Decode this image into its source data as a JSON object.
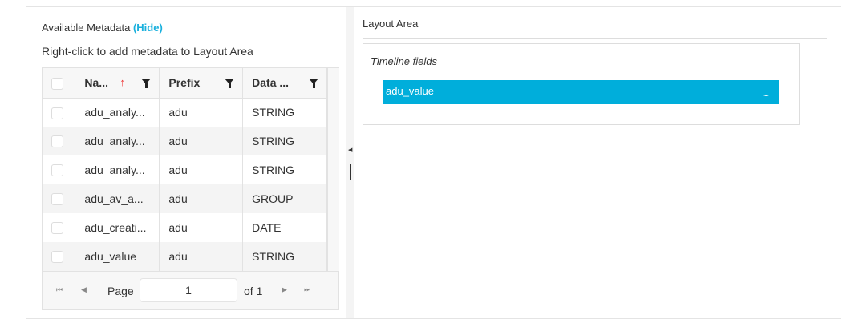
{
  "left": {
    "title": "Available Metadata",
    "hide_label": "(Hide)",
    "hint": "Right-click to add metadata to Layout Area",
    "columns": [
      "Na...",
      "Prefix",
      "Data ..."
    ],
    "rows": [
      {
        "name": "adu_analy...",
        "prefix": "adu",
        "type": "STRING"
      },
      {
        "name": "adu_analy...",
        "prefix": "adu",
        "type": "STRING"
      },
      {
        "name": "adu_analy...",
        "prefix": "adu",
        "type": "STRING"
      },
      {
        "name": "adu_av_a...",
        "prefix": "adu",
        "type": "GROUP"
      },
      {
        "name": "adu_creati...",
        "prefix": "adu",
        "type": "DATE"
      },
      {
        "name": "adu_value",
        "prefix": "adu",
        "type": "STRING"
      }
    ],
    "pager": {
      "page_label": "Page",
      "page": "1",
      "of_label": "of 1"
    }
  },
  "right": {
    "title": "Layout Area",
    "timeline_title": "Timeline fields",
    "fields": [
      {
        "label": "adu_value",
        "menu": "..."
      }
    ]
  },
  "colors": {
    "accent": "#00aedb",
    "sort": "#ee3333"
  }
}
